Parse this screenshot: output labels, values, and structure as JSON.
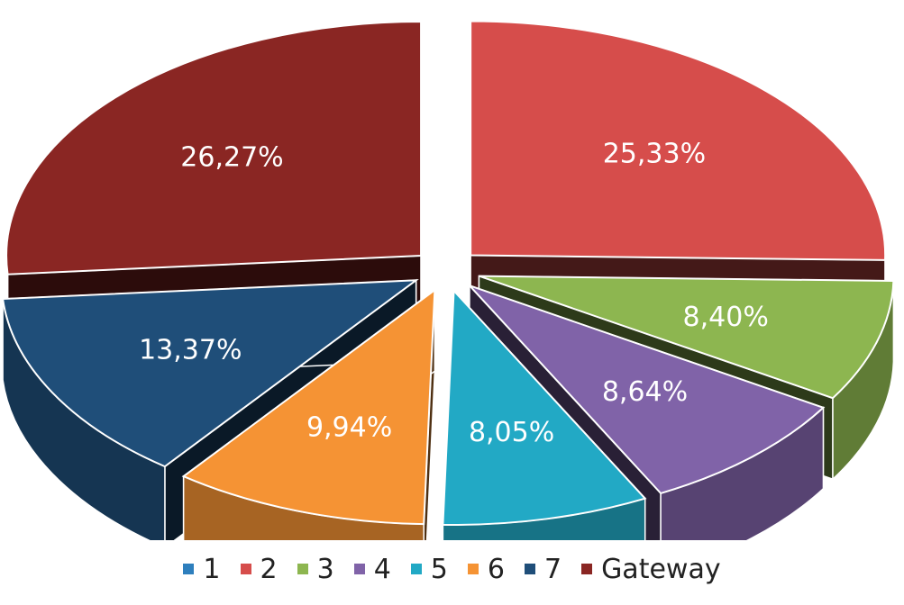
{
  "chart_data": {
    "type": "pie",
    "style": "3d-exploded",
    "categories": [
      "1",
      "2",
      "3",
      "4",
      "5",
      "6",
      "7",
      "Gateway"
    ],
    "values": [
      0.0,
      25.33,
      8.4,
      8.64,
      8.05,
      9.94,
      13.37,
      26.27
    ],
    "data_labels": [
      "",
      "25,33%",
      "8,40%",
      "8,64%",
      "8,05%",
      "9,94%",
      "13,37%",
      "26,27%"
    ],
    "colors": [
      "#2e7fbd",
      "#d64d4b",
      "#8db650",
      "#8063a8",
      "#22a9c5",
      "#f59334",
      "#1f4e79",
      "#8a2623"
    ],
    "legend_position": "bottom"
  }
}
